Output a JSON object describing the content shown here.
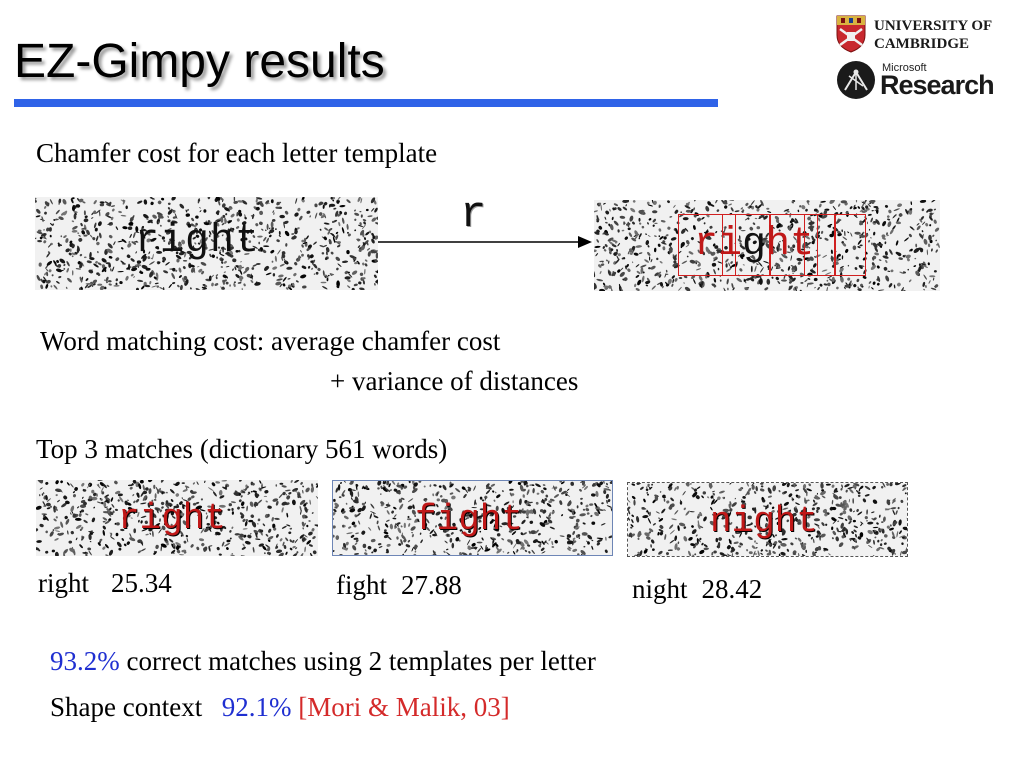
{
  "slide": {
    "title": "EZ-Gimpy results",
    "logos": {
      "university_line1": "UNIVERSITY OF",
      "university_line2": "CAMBRIDGE",
      "msr_small": "Microsoft",
      "msr_big": "Research"
    },
    "chamfer_heading": "Chamfer cost for each letter template",
    "input_word": "right",
    "template_letter": "r",
    "matched_word_letters": [
      "r",
      "i",
      "g",
      "h",
      "t"
    ],
    "word_cost_line1": "Word matching cost: average chamfer cost",
    "word_cost_line2": "+ variance of distances",
    "top3_heading": "Top 3 matches (dictionary 561 words)",
    "matches": [
      {
        "word": "right",
        "label": "right",
        "score": "25.34"
      },
      {
        "word": "fight",
        "label": "fight",
        "score": "27.88"
      },
      {
        "word": "night",
        "label": "night",
        "score": "28.42"
      }
    ],
    "result_pct": "93.2%",
    "result_text": "correct matches using 2 templates per letter",
    "shape_context_label": "Shape context",
    "shape_context_pct": "92.1%",
    "shape_context_ref": "[Mori & Malik, 03]",
    "colors": {
      "accent_rule": "#2f63e8",
      "highlight_blue": "#1f2fd1",
      "highlight_red": "#d42a2a",
      "match_word_red": "#c01818"
    }
  }
}
